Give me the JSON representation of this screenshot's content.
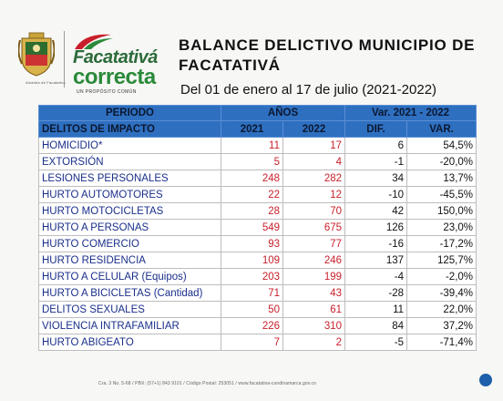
{
  "header": {
    "shield_caption": "Alcaldía de Facatativá",
    "brand_line1": "Facatativá",
    "brand_line2": "correcta",
    "brand_line3": "UN PROPÓSITO COMÚN",
    "title_line1": "BALANCE DELICTIVO MUNICIPIO DE",
    "title_line2": "FACATATIVÁ",
    "subtitle": "Del 01 de enero al 17 de julio (2021-2022)"
  },
  "table": {
    "head": {
      "periodo": "PERIODO",
      "anos": "AÑOS",
      "var_range": "Var. 2021 - 2022",
      "delitos": "DELITOS DE IMPACTO",
      "y2021": "2021",
      "y2022": "2022",
      "dif": "DIF.",
      "var": "VAR."
    },
    "rows": [
      {
        "name": "HOMICIDIO*",
        "y2021": "11",
        "y2022": "17",
        "dif": "6",
        "var": "54,5%"
      },
      {
        "name": "EXTORSIÓN",
        "y2021": "5",
        "y2022": "4",
        "dif": "-1",
        "var": "-20,0%"
      },
      {
        "name": "LESIONES PERSONALES",
        "y2021": "248",
        "y2022": "282",
        "dif": "34",
        "var": "13,7%"
      },
      {
        "name": "HURTO AUTOMOTORES",
        "y2021": "22",
        "y2022": "12",
        "dif": "-10",
        "var": "-45,5%"
      },
      {
        "name": "HURTO MOTOCICLETAS",
        "y2021": "28",
        "y2022": "70",
        "dif": "42",
        "var": "150,0%"
      },
      {
        "name": "HURTO A PERSONAS",
        "y2021": "549",
        "y2022": "675",
        "dif": "126",
        "var": "23,0%"
      },
      {
        "name": "HURTO COMERCIO",
        "y2021": "93",
        "y2022": "77",
        "dif": "-16",
        "var": "-17,2%"
      },
      {
        "name": "HURTO RESIDENCIA",
        "y2021": "109",
        "y2022": "246",
        "dif": "137",
        "var": "125,7%"
      },
      {
        "name": "HURTO A CELULAR (Equipos)",
        "y2021": "203",
        "y2022": "199",
        "dif": "-4",
        "var": "-2,0%"
      },
      {
        "name": "HURTO A BICICLETAS (Cantidad)",
        "y2021": "71",
        "y2022": "43",
        "dif": "-28",
        "var": "-39,4%"
      },
      {
        "name": "DELITOS SEXUALES",
        "y2021": "50",
        "y2022": "61",
        "dif": "11",
        "var": "22,0%"
      },
      {
        "name": "VIOLENCIA INTRAFAMILIAR",
        "y2021": "226",
        "y2022": "310",
        "dif": "84",
        "var": "37,2%"
      },
      {
        "name": "HURTO ABIGEATO",
        "y2021": "7",
        "y2022": "2",
        "dif": "-5",
        "var": "-71,4%"
      }
    ]
  },
  "footer": {
    "text": "Cra. 3 No. 5-68 / PBX: (57+1) 843 9101 / Código Postal: 253051 / www.facatativa-cundinamarca.gov.co"
  },
  "colors": {
    "header_blue": "#2e6fc0",
    "name_text": "#1a2f8a",
    "year_text": "#c8202b",
    "brand_green": "#2a8a3a",
    "brand_red": "#c8202b"
  },
  "icons": [
    "municipal-shield-icon",
    "brand-swoosh-icon",
    "footer-badge-icon"
  ]
}
